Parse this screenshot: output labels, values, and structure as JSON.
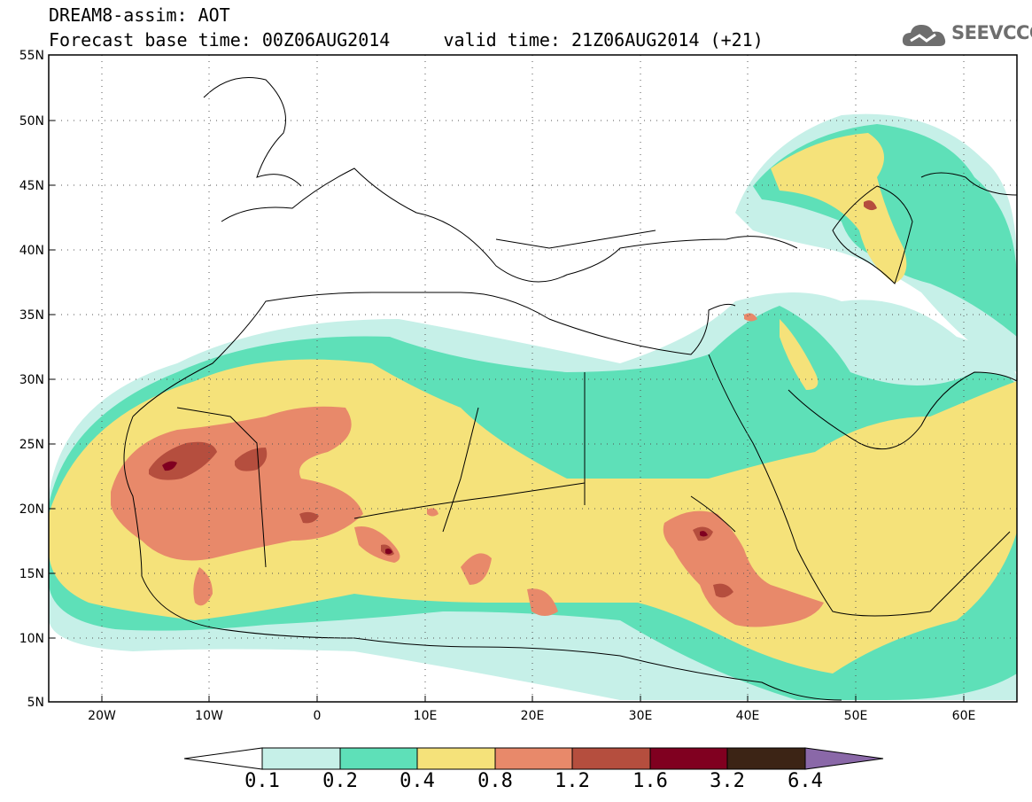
{
  "header": {
    "title_line1": "DREAM8-assim: AOT",
    "title_line2": "Forecast base time: 00Z06AUG2014     valid time: 21Z06AUG2014 (+21)"
  },
  "logo": {
    "text": "SEEVCCC",
    "icon": "cloud-logo-icon"
  },
  "axes": {
    "lat_labels": [
      "55N",
      "50N",
      "45N",
      "40N",
      "35N",
      "30N",
      "25N",
      "20N",
      "15N",
      "10N",
      "5N"
    ],
    "lon_labels": [
      "20W",
      "10W",
      "0",
      "10E",
      "20E",
      "30E",
      "40E",
      "50E",
      "60E"
    ]
  },
  "colorbar": {
    "labels": [
      "0.1",
      "0.2",
      "0.4",
      "0.8",
      "1.2",
      "1.6",
      "3.2",
      "6.4"
    ],
    "colors": [
      "#ffffff",
      "#c6f0e8",
      "#5ee0b8",
      "#f5e27a",
      "#e8896a",
      "#b54e3e",
      "#800020",
      "#3c2415",
      "#8a68a8"
    ]
  },
  "colors": {
    "c1": "#c6f0e8",
    "c2": "#5ee0b8",
    "c3": "#f5e27a",
    "c4": "#e8896a",
    "c5": "#b54e3e",
    "c6": "#800020"
  }
}
